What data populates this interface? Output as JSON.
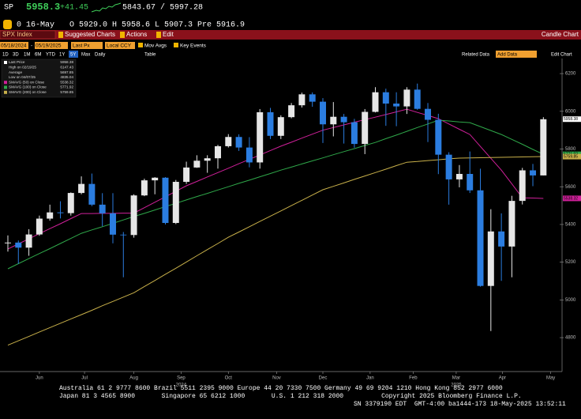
{
  "header": {
    "ticker": "SP",
    "price": "5958.3",
    "change": "+41.45",
    "range": "5843.67 / 5997.28",
    "flag": "0",
    "date": "16-May",
    "quote": "O 5929.0 H 5958.6 L 5907.3 Pre 5916.9"
  },
  "toolbar": {
    "security": "SPX Index",
    "menu": [
      "Suggested Charts",
      "Actions",
      "Edit"
    ],
    "title": "Candle Chart"
  },
  "controls": {
    "start": "05/18/2024",
    "separator": "-",
    "end": "05/19/2025",
    "field": "Last Px",
    "currency": "Local CCY",
    "options": [
      "Mov Avgs",
      "Key Events"
    ],
    "right": [
      "Related Data",
      "Add Data",
      "Edit Chart"
    ],
    "periods": [
      "1D",
      "3D",
      "1M",
      "6M",
      "YTD",
      "1Y",
      "5Y",
      "Max"
    ],
    "frequency": "Daily",
    "table": "Table"
  },
  "chart_data": {
    "type": "candlestick",
    "up_color": "#e6e6e6",
    "down_color": "#2b7de0",
    "open": [
      5300,
      5304,
      5277,
      5347,
      5431,
      5464,
      5460,
      5567,
      5615,
      5505,
      5459,
      5346,
      5344,
      5554,
      5634,
      5648,
      5408,
      5626,
      5702,
      5738,
      5751,
      5815,
      5864,
      5808,
      5729,
      5995,
      5870,
      5969,
      6032,
      6090,
      6051,
      5931,
      5971,
      5942,
      5827,
      5997,
      6101,
      6041,
      6026,
      6115,
      6013,
      5955,
      5770,
      5639,
      5668,
      5581,
      5074,
      5363,
      5283,
      5525,
      5687,
      5660
    ],
    "high": [
      5342,
      5315,
      5375,
      5447,
      5505,
      5523,
      5570,
      5655,
      5670,
      5566,
      5566,
      5360,
      5560,
      5643,
      5651,
      5651,
      5636,
      5733,
      5767,
      5767,
      5822,
      5879,
      5878,
      5863,
      6012,
      6018,
      5979,
      6044,
      6099,
      6100,
      6070,
      6049,
      5986,
      5960,
      6012,
      6128,
      6120,
      6101,
      6128,
      6147,
      6044,
      5987,
      5783,
      5715,
      5787,
      5696,
      5481,
      5459,
      5552,
      5700,
      5721,
      5969
    ],
    "low": [
      5256,
      5191,
      5234,
      5340,
      5420,
      5432,
      5447,
      5560,
      5497,
      5390,
      5300,
      5120,
      5330,
      5550,
      5560,
      5400,
      5402,
      5615,
      5700,
      5674,
      5696,
      5808,
      5790,
      5703,
      5696,
      5853,
      5853,
      5963,
      6020,
      6024,
      5832,
      5867,
      5829,
      5807,
      5773,
      5994,
      5923,
      5921,
      5986,
      6008,
      5837,
      5667,
      5505,
      5597,
      5567,
      5070,
      4835,
      5101,
      5120,
      5506,
      5603,
      5660
    ],
    "close": [
      5304,
      5277,
      5347,
      5431,
      5464,
      5460,
      5567,
      5615,
      5505,
      5459,
      5346,
      5344,
      5554,
      5634,
      5648,
      5408,
      5626,
      5702,
      5738,
      5751,
      5815,
      5864,
      5808,
      5729,
      5995,
      5870,
      5969,
      6032,
      6090,
      6051,
      5931,
      5971,
      5942,
      5827,
      5997,
      6101,
      6041,
      6026,
      6115,
      6013,
      5955,
      5770,
      5639,
      5668,
      5581,
      5074,
      5363,
      5283,
      5525,
      5687,
      5660,
      5958
    ],
    "moving_averages": [
      {
        "name": "SMAVG (50)  on Close",
        "color": "#d0209a",
        "last": 5538.32,
        "values": [
          5270,
          5297,
          5324,
          5351,
          5378,
          5404,
          5431,
          5458,
          5458,
          5459,
          5459,
          5460,
          5460,
          5489,
          5518,
          5547,
          5576,
          5605,
          5628,
          5652,
          5675,
          5698,
          5722,
          5745,
          5768,
          5792,
          5815,
          5836,
          5858,
          5879,
          5900,
          5914,
          5928,
          5942,
          5956,
          5969,
          5983,
          5997,
          6011,
          5994,
          5978,
          5961,
          5933,
          5905,
          5877,
          5814,
          5751,
          5688,
          5615,
          5541,
          5540,
          5538
        ]
      },
      {
        "name": "SMAVG (100)  on Close",
        "color": "#2fa84a",
        "last": 5771.92,
        "values": [
          5165,
          5192,
          5219,
          5246,
          5272,
          5299,
          5326,
          5353,
          5371,
          5388,
          5406,
          5424,
          5442,
          5459,
          5477,
          5495,
          5512,
          5530,
          5548,
          5565,
          5583,
          5600,
          5618,
          5635,
          5653,
          5670,
          5688,
          5704,
          5721,
          5737,
          5753,
          5770,
          5786,
          5802,
          5819,
          5835,
          5855,
          5874,
          5894,
          5914,
          5933,
          5953,
          5949,
          5944,
          5940,
          5919,
          5898,
          5877,
          5851,
          5825,
          5798,
          5772
        ]
      },
      {
        "name": "SMAVG (200)  on Close",
        "color": "#c8b04a",
        "last": 5759.85,
        "values": [
          4760,
          4783,
          4806,
          4830,
          4853,
          4876,
          4899,
          4922,
          4945,
          4969,
          4992,
          5015,
          5038,
          5071,
          5103,
          5136,
          5168,
          5201,
          5234,
          5267,
          5299,
          5332,
          5360,
          5388,
          5416,
          5444,
          5472,
          5500,
          5528,
          5556,
          5584,
          5602,
          5620,
          5639,
          5657,
          5675,
          5693,
          5712,
          5730,
          5734,
          5739,
          5743,
          5748,
          5752,
          5753,
          5754,
          5755,
          5756,
          5757,
          5758,
          5759,
          5760
        ]
      }
    ],
    "stats": [
      {
        "name": "Last Price",
        "value": 5958.38
      },
      {
        "name": "High on 02/19/25",
        "value": 6147.43
      },
      {
        "name": "Average",
        "value": 5697.85
      },
      {
        "name": "Low on 04/07/25",
        "value": 4835.04
      }
    ],
    "xlim": [
      -0.75,
      52.78
    ],
    "xticks": [
      {
        "value": 3,
        "label": "Jun"
      },
      {
        "value": 7.3,
        "label": "Jul"
      },
      {
        "value": 12,
        "label": "Aug"
      },
      {
        "value": 16.5,
        "label": "Sep"
      },
      {
        "value": 21,
        "label": "Oct"
      },
      {
        "value": 25.6,
        "label": "Nov"
      },
      {
        "value": 30,
        "label": "Dec"
      },
      {
        "value": 34.5,
        "label": "Jan"
      },
      {
        "value": 38.6,
        "label": "Feb"
      },
      {
        "value": 42.7,
        "label": "Mar"
      },
      {
        "value": 47.1,
        "label": "Apr"
      },
      {
        "value": 51.7,
        "label": "May"
      }
    ],
    "years": [
      {
        "value": 16.5,
        "label": "2024"
      },
      {
        "value": 42.7,
        "label": "2025"
      }
    ],
    "ylim": [
      4620,
      6280
    ],
    "yticks": [
      4800,
      5000,
      5200,
      5400,
      5600,
      5800,
      6000,
      6200
    ]
  },
  "footer": {
    "lines": [
      "Australia 61 2 9777 8600 Brazil 5511 2395 9000 Europe 44 20 7330 7500 Germany 49 69 9204 1210 Hong Kong 852 2977 6000",
      "Japan 81 3 4565 8900       Singapore 65 6212 1000       U.S. 1 212 318 2000          Copyright 2025 Bloomberg Finance L.P.",
      "SN 3379190 EDT  GMT-4:00 ba1444-173 18-May-2025 13:52:11"
    ]
  }
}
